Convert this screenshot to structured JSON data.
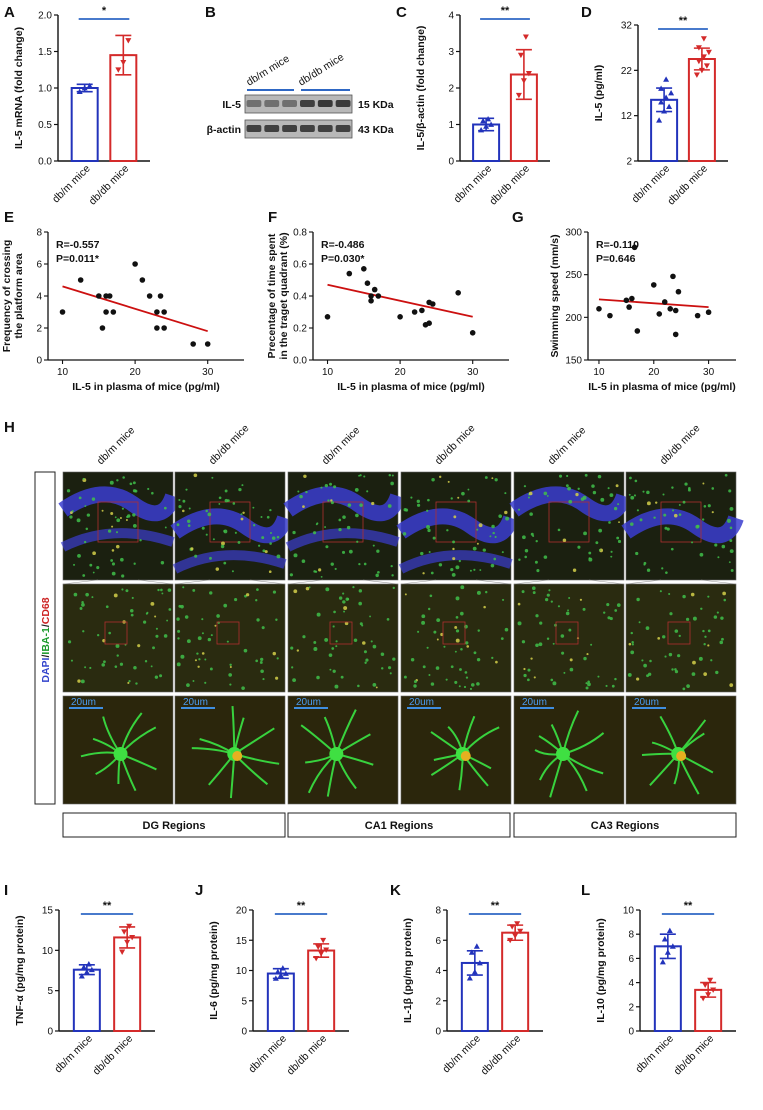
{
  "panel_letters": [
    "A",
    "B",
    "C",
    "D",
    "E",
    "F",
    "G",
    "H",
    "I",
    "J",
    "K",
    "L"
  ],
  "groups": [
    "db/m mice",
    "db/db mice"
  ],
  "colors": {
    "blue": "#2233bb",
    "red": "#d42a2a",
    "fitline": "#cc1010",
    "sigline": "#2e67c4"
  },
  "bar_charts": [
    {
      "panel": "A",
      "type": "bar",
      "ylabel": "IL-5 mRNA (fold change)",
      "ylim": [
        0,
        2.0
      ],
      "ticks": [
        "0.0",
        "0.5",
        "1.0",
        "1.5",
        "2.0"
      ],
      "tick_values": [
        0,
        0.5,
        1.0,
        1.5,
        2.0
      ],
      "values": [
        1.0,
        1.45
      ],
      "sd": [
        0.05,
        0.27
      ],
      "points": [
        [
          0.95,
          1.0,
          1.03
        ],
        [
          1.25,
          1.35,
          1.65
        ]
      ],
      "sig": "*"
    },
    {
      "panel": "C",
      "type": "bar",
      "ylabel": "IL-5/β-actin (fold change)",
      "ylim": [
        0,
        4
      ],
      "ticks": [
        "0",
        "1",
        "2",
        "3",
        "4"
      ],
      "tick_values": [
        0,
        1,
        2,
        3,
        4
      ],
      "values": [
        1.0,
        2.37
      ],
      "sd": [
        0.17,
        0.68
      ],
      "points": [
        [
          0.85,
          0.95,
          1.0,
          1.1,
          1.15
        ],
        [
          1.8,
          2.2,
          2.4,
          2.9,
          3.4
        ]
      ],
      "sig": "**"
    },
    {
      "panel": "D",
      "type": "bar",
      "ylabel": "IL-5 (pg/ml)",
      "ylim": [
        2,
        32
      ],
      "ticks": [
        "2",
        "12",
        "22",
        "32"
      ],
      "tick_values": [
        2,
        12,
        22,
        32
      ],
      "values": [
        15.5,
        24.5
      ],
      "sd": [
        2.6,
        2.4
      ],
      "points": [
        [
          11,
          13,
          14,
          15,
          16,
          17,
          18,
          20
        ],
        [
          21,
          22,
          23,
          24,
          25,
          26,
          27,
          29
        ]
      ],
      "sig": "**"
    },
    {
      "panel": "I",
      "type": "bar",
      "ylabel": "TNF-α (pg/mg protein)",
      "ylim": [
        0,
        15
      ],
      "ticks": [
        "0",
        "5",
        "10",
        "15"
      ],
      "tick_values": [
        0,
        5,
        10,
        15
      ],
      "values": [
        7.6,
        11.6
      ],
      "sd": [
        0.6,
        1.3
      ],
      "points": [
        [
          6.8,
          7.3,
          7.6,
          7.9,
          8.3
        ],
        [
          9.8,
          11.0,
          11.6,
          12.3,
          13.0
        ]
      ],
      "sig": "**"
    },
    {
      "panel": "J",
      "type": "bar",
      "ylabel": "IL-6 (pg/mg protein)",
      "ylim": [
        0,
        20
      ],
      "ticks": [
        "0",
        "5",
        "10",
        "15",
        "20"
      ],
      "tick_values": [
        0,
        5,
        10,
        15,
        20
      ],
      "values": [
        9.5,
        13.3
      ],
      "sd": [
        0.8,
        1.1
      ],
      "points": [
        [
          8.7,
          9.2,
          9.5,
          9.8,
          10.4
        ],
        [
          12.0,
          12.8,
          13.4,
          13.9,
          15.0
        ]
      ],
      "sig": "**"
    },
    {
      "panel": "K",
      "type": "bar",
      "ylabel": "IL-1β (pg/mg protein)",
      "ylim": [
        0,
        8
      ],
      "ticks": [
        "0",
        "2",
        "4",
        "6",
        "8"
      ],
      "tick_values": [
        0,
        2,
        4,
        6,
        8
      ],
      "values": [
        4.5,
        6.5
      ],
      "sd": [
        0.8,
        0.5
      ],
      "points": [
        [
          3.5,
          3.9,
          4.5,
          5.2,
          5.6
        ],
        [
          6.0,
          6.3,
          6.6,
          6.9,
          7.1
        ]
      ],
      "sig": "**"
    },
    {
      "panel": "L",
      "type": "bar",
      "ylabel": "IL-10 (pg/mg protein)",
      "ylim": [
        0,
        10
      ],
      "ticks": [
        "0",
        "2",
        "4",
        "6",
        "8",
        "10"
      ],
      "tick_values": [
        0,
        2,
        4,
        6,
        8,
        10
      ],
      "values": [
        7.0,
        3.4
      ],
      "sd": [
        1.0,
        0.6
      ],
      "points": [
        [
          5.7,
          6.5,
          7.0,
          7.6,
          8.3
        ],
        [
          2.7,
          3.0,
          3.4,
          3.8,
          4.2
        ]
      ],
      "sig": "**"
    }
  ],
  "scatter_charts": [
    {
      "panel": "E",
      "type": "scatter",
      "ylabel_lines": [
        "Frequency of crossing",
        "the platform area"
      ],
      "xlabel": "IL-5 in plasma of mice (pg/ml)",
      "xlim": [
        8,
        35
      ],
      "xticks": [
        "10",
        "20",
        "30"
      ],
      "xtick_values": [
        10,
        20,
        30
      ],
      "ylim": [
        0,
        8
      ],
      "yticks": [
        "0",
        "2",
        "4",
        "6",
        "8"
      ],
      "ytick_values": [
        0,
        2,
        4,
        6,
        8
      ],
      "r": "R=-0.557",
      "p": "P=0.011*",
      "fit": [
        [
          10,
          4.6
        ],
        [
          30,
          1.8
        ]
      ],
      "x": [
        10,
        12.5,
        15,
        15.5,
        16,
        16,
        16.5,
        17,
        20,
        21,
        22,
        23,
        23,
        23.5,
        24,
        24,
        28,
        30
      ],
      "y": [
        3,
        5,
        4,
        2,
        3,
        4,
        4,
        3,
        6,
        5,
        4,
        2,
        3,
        4,
        2,
        3,
        1,
        1
      ]
    },
    {
      "panel": "F",
      "type": "scatter",
      "ylabel_lines": [
        "Precentage of time spent",
        "in the traget quadrant (%)"
      ],
      "xlabel": "IL-5 in plasma of mice (pg/ml)",
      "xlim": [
        8,
        35
      ],
      "xticks": [
        "10",
        "20",
        "30"
      ],
      "xtick_values": [
        10,
        20,
        30
      ],
      "ylim": [
        0,
        0.8
      ],
      "yticks": [
        "0.0",
        "0.2",
        "0.4",
        "0.6",
        "0.8"
      ],
      "ytick_values": [
        0,
        0.2,
        0.4,
        0.6,
        0.8
      ],
      "r": "R=-0.486",
      "p": "P=0.030*",
      "fit": [
        [
          10,
          0.47
        ],
        [
          30,
          0.27
        ]
      ],
      "x": [
        10,
        13,
        15,
        15.5,
        16,
        16,
        16.5,
        17,
        20,
        22,
        23,
        23.5,
        24,
        24,
        24.5,
        28,
        30
      ],
      "y": [
        0.27,
        0.54,
        0.57,
        0.48,
        0.37,
        0.4,
        0.44,
        0.4,
        0.27,
        0.3,
        0.31,
        0.22,
        0.36,
        0.23,
        0.35,
        0.42,
        0.17
      ]
    },
    {
      "panel": "G",
      "type": "scatter",
      "ylabel_lines": [
        "Swimming speed (mm/s)"
      ],
      "xlabel": "IL-5 in plasma of mice (pg/ml)",
      "xlim": [
        8,
        35
      ],
      "xticks": [
        "10",
        "20",
        "30"
      ],
      "xtick_values": [
        10,
        20,
        30
      ],
      "ylim": [
        150,
        300
      ],
      "yticks": [
        "150",
        "200",
        "250",
        "300"
      ],
      "ytick_values": [
        150,
        200,
        250,
        300
      ],
      "r": "R=-0.110",
      "p": "P=0.646",
      "fit": [
        [
          10,
          221
        ],
        [
          30,
          212
        ]
      ],
      "x": [
        10,
        12,
        15,
        15.5,
        16,
        16.5,
        17,
        20,
        21,
        22,
        23,
        23.5,
        24,
        24,
        24.5,
        28,
        30
      ],
      "y": [
        210,
        202,
        220,
        212,
        222,
        282,
        184,
        238,
        204,
        218,
        210,
        248,
        180,
        208,
        230,
        202,
        206
      ]
    }
  ],
  "blot": {
    "lane_groups": [
      "db/m mice",
      "db/db mice"
    ],
    "rows": [
      {
        "label": "IL-5",
        "size": "15 KDa",
        "intensity": [
          0.55,
          0.55,
          0.55,
          0.85,
          0.9,
          0.88
        ]
      },
      {
        "label": "β-actin",
        "size": "43 KDa",
        "intensity": [
          0.85,
          0.85,
          0.85,
          0.85,
          0.85,
          0.85
        ]
      }
    ]
  },
  "panelH": {
    "columns": [
      "db/m mice",
      "db/db mice",
      "db/m mice",
      "db/db mice",
      "db/m mice",
      "db/db mice"
    ],
    "regions": [
      "DG Regions",
      "CA1 Regions",
      "CA3 Regions"
    ],
    "side_label": [
      {
        "text": "DAPI",
        "color": "#3344cc"
      },
      {
        "text": "/",
        "color": "#222"
      },
      {
        "text": "IBA-1",
        "color": "#1a9a2a"
      },
      {
        "text": "/",
        "color": "#222"
      },
      {
        "text": "CD68",
        "color": "#cc2222"
      }
    ],
    "scale_label": "20um"
  }
}
